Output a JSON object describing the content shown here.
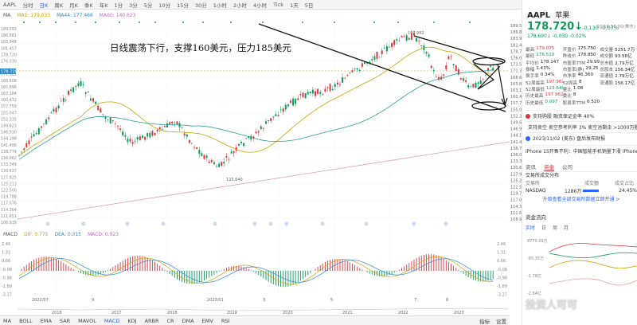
{
  "topbar": {
    "items": [
      "AAPL",
      "分时",
      "日K",
      "周K",
      "月K",
      "季K",
      "年K",
      "1分",
      "3分",
      "5分",
      "10分",
      "15分",
      "30分",
      "1小时",
      "2小时",
      "4小时",
      "Tick",
      "1天",
      "5日"
    ],
    "active_index": 2
  },
  "ma_legend": [
    {
      "label": "MA",
      "color": "#555555"
    },
    {
      "label": "MA5: 179.033",
      "color": "#c9a400"
    },
    {
      "label": "MA44: 177.466",
      "color": "#2a8bd0"
    },
    {
      "label": "MA60: 140.623",
      "color": "#c06ab8"
    }
  ],
  "annotation": "日线震荡下行，支撑160美元，压力185美元",
  "price_axis": [
    "189.593",
    "186.881",
    "183.948",
    "181.457",
    "178.720",
    "176.030",
    "173.542",
    "171.321",
    "168.608",
    "165.896",
    "163.184",
    "160.472",
    "157.759",
    "155.047",
    "152.335",
    "149.623",
    "146.910",
    "144.198",
    "141.486",
    "138.774",
    "136.062",
    "133.349",
    "130.637",
    "127.925",
    "125.213",
    "122.500",
    "119.788",
    "117.076",
    "114.364",
    "111.651",
    "108.939"
  ],
  "price_tag": "178.720",
  "macd_axis": [
    "2.46",
    "1.31",
    "0.66",
    "-0.08",
    "-0.98",
    "-1.89",
    "-3.27"
  ],
  "peak_label": "197.962",
  "low_label": "123.640",
  "date_row1": [
    "2022/07",
    "9",
    "",
    "2023/01",
    "3",
    "5",
    "7",
    "8"
  ],
  "date_row2": [
    "2016",
    "2017",
    "2018",
    "2019",
    "2020",
    "2021",
    "2022",
    "2023"
  ],
  "macd_legend": [
    {
      "label": "MACD",
      "color": "#555555"
    },
    {
      "label": "DIF: 0.775",
      "color": "#c9a400"
    },
    {
      "label": "DEA: 0.315",
      "color": "#2a8bd0"
    },
    {
      "label": "MACD: 0.923",
      "color": "#c06ab8"
    }
  ],
  "bottombar": {
    "items": [
      "MA",
      "BOLL",
      "EMA",
      "SAR",
      "MAVOL",
      "MACD",
      "KDJ",
      "ARBR",
      "CR",
      "DMA",
      "EMV",
      "RSI"
    ],
    "active_index": 5,
    "right": [
      "指标",
      "设置"
    ]
  },
  "side": {
    "ticker": "AAPL",
    "name": "苹果",
    "price": "178.720↓",
    "change": "-0.130 -0.07%",
    "after": "178.690↓ -0.030 -0.02%",
    "time": "10/16 16:00(美东)",
    "stats": [
      [
        [
          "最高",
          "179.075",
          "up"
        ],
        [
          "开盘价",
          "175.750",
          ""
        ],
        [
          "成交量",
          "5251.7万",
          ""
        ]
      ],
      [
        [
          "最低",
          "176.510",
          "dn"
        ],
        [
          "昨收价",
          "178.850",
          ""
        ],
        [
          "成交额",
          "93.56亿",
          ""
        ]
      ],
      [
        [
          "平均价",
          "178.147",
          ""
        ],
        [
          "市盈率TTM",
          "29.99",
          ""
        ],
        [
          "总市值",
          "2.79万亿",
          ""
        ]
      ],
      [
        [
          "振幅",
          "1.43%",
          ""
        ],
        [
          "市盈率(静)",
          "29.25",
          ""
        ],
        [
          "总股本",
          "156.34亿",
          ""
        ]
      ],
      [
        [
          "换手率",
          "0.34%",
          ""
        ],
        [
          "市净率",
          "46.360",
          ""
        ],
        [
          "流通值",
          "2.79万亿",
          ""
        ]
      ],
      [
        [
          "52周最高",
          "197.962",
          "up"
        ],
        [
          "52周高",
          "8",
          ""
        ],
        [
          "流通股",
          "156.17亿",
          ""
        ]
      ],
      [
        [
          "52周最低",
          "123.640",
          "dn"
        ],
        [
          "量比",
          "1.08",
          ""
        ],
        [
          "",
          ""
        ]
      ],
      [
        [
          "历史最高",
          "197.962",
          "up"
        ],
        [
          "委比",
          "8",
          ""
        ],
        [
          "",
          ""
        ]
      ],
      [
        [
          "历史最低",
          "0.097",
          "dn"
        ],
        [
          "股息率TTM",
          "0.520%",
          ""
        ],
        [
          "",
          ""
        ]
      ]
    ],
    "news": [
      {
        "text": "支持购股 融资保证金率 40%",
        "color": "#e0353b"
      },
      {
        "text": "支持卖空 卖空参考利率 3%  卖空池剩余 >1000万股",
        "color": "#e0353b"
      },
      {
        "text": "2023/11/02 (美东) 盘后发布财报",
        "color": "#2962ff"
      },
      {
        "text": "iPhone 15开售不利：中国智能手机销量下滑 iPhone 14下...",
        "color": ""
      }
    ],
    "tabs": [
      "资讯",
      "资金",
      "公司"
    ],
    "tabs_active": 1,
    "exchange_title": "交易所成交分布",
    "exchange_header": [
      "交易所",
      "成交额",
      "成交占比"
    ],
    "exchange_rows": [
      [
        "NASDAQ",
        "1286万",
        "24.45%"
      ]
    ],
    "exchange_more": "升级查看全部交易所数据立即开通 >",
    "flow_title": "资金流向",
    "flow_tabs": [
      "实时",
      "日",
      "周",
      "月"
    ],
    "flow_axis": [
      "8770.09万",
      "-85.35万",
      "-1.78亿",
      "-2.64亿"
    ]
  },
  "watermark": "投资人可可"
}
